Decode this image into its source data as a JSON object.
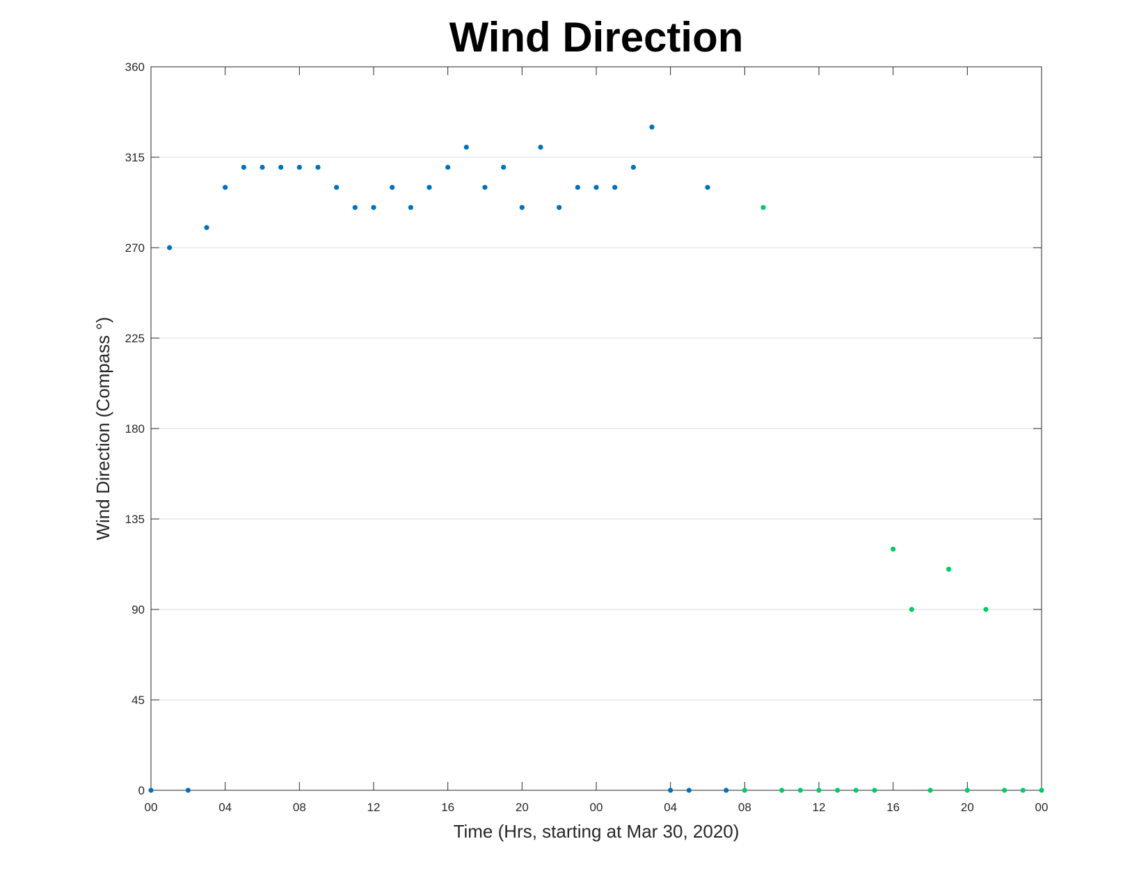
{
  "chart_data": {
    "type": "scatter",
    "title": "Wind Direction",
    "xlabel": "Time (Hrs, starting at Mar 30, 2020)",
    "ylabel": "Wind Direction (Compass °)",
    "x_unit": "hours",
    "xlim": [
      0,
      48
    ],
    "ylim": [
      0,
      360
    ],
    "yticks": [
      0,
      45,
      90,
      135,
      180,
      225,
      270,
      315,
      360
    ],
    "ytick_labels": [
      "0",
      "45",
      "90",
      "135",
      "180",
      "225",
      "270",
      "315",
      "360"
    ],
    "xticks": [
      0,
      4,
      8,
      12,
      16,
      20,
      24,
      28,
      32,
      36,
      40,
      44,
      48
    ],
    "xtick_labels": [
      "00",
      "04",
      "08",
      "12",
      "16",
      "20",
      "00",
      "04",
      "08",
      "12",
      "16",
      "20",
      "00"
    ],
    "grid": "horizontal",
    "legend": "none",
    "series": [
      {
        "color": "#0072BD",
        "x": [
          0,
          1,
          2,
          3,
          4,
          5,
          6,
          7,
          8,
          9,
          10,
          11,
          12,
          13,
          14,
          15,
          16,
          17,
          18,
          19,
          20,
          21,
          22,
          23,
          24,
          25,
          26,
          27,
          28,
          29,
          30,
          31
        ],
        "y": [
          0,
          270,
          0,
          280,
          300,
          310,
          310,
          310,
          310,
          310,
          300,
          290,
          290,
          300,
          290,
          300,
          310,
          320,
          300,
          310,
          290,
          320,
          290,
          300,
          300,
          300,
          310,
          330,
          0,
          0,
          300,
          0
        ]
      },
      {
        "color": "#00CC66",
        "x": [
          32,
          33,
          34,
          35,
          36,
          37,
          38,
          39,
          40,
          41,
          42,
          43,
          44,
          45,
          46,
          47,
          48
        ],
        "y": [
          0,
          290,
          0,
          0,
          0,
          0,
          0,
          0,
          120,
          90,
          0,
          110,
          0,
          90,
          0,
          0,
          0
        ]
      }
    ]
  }
}
